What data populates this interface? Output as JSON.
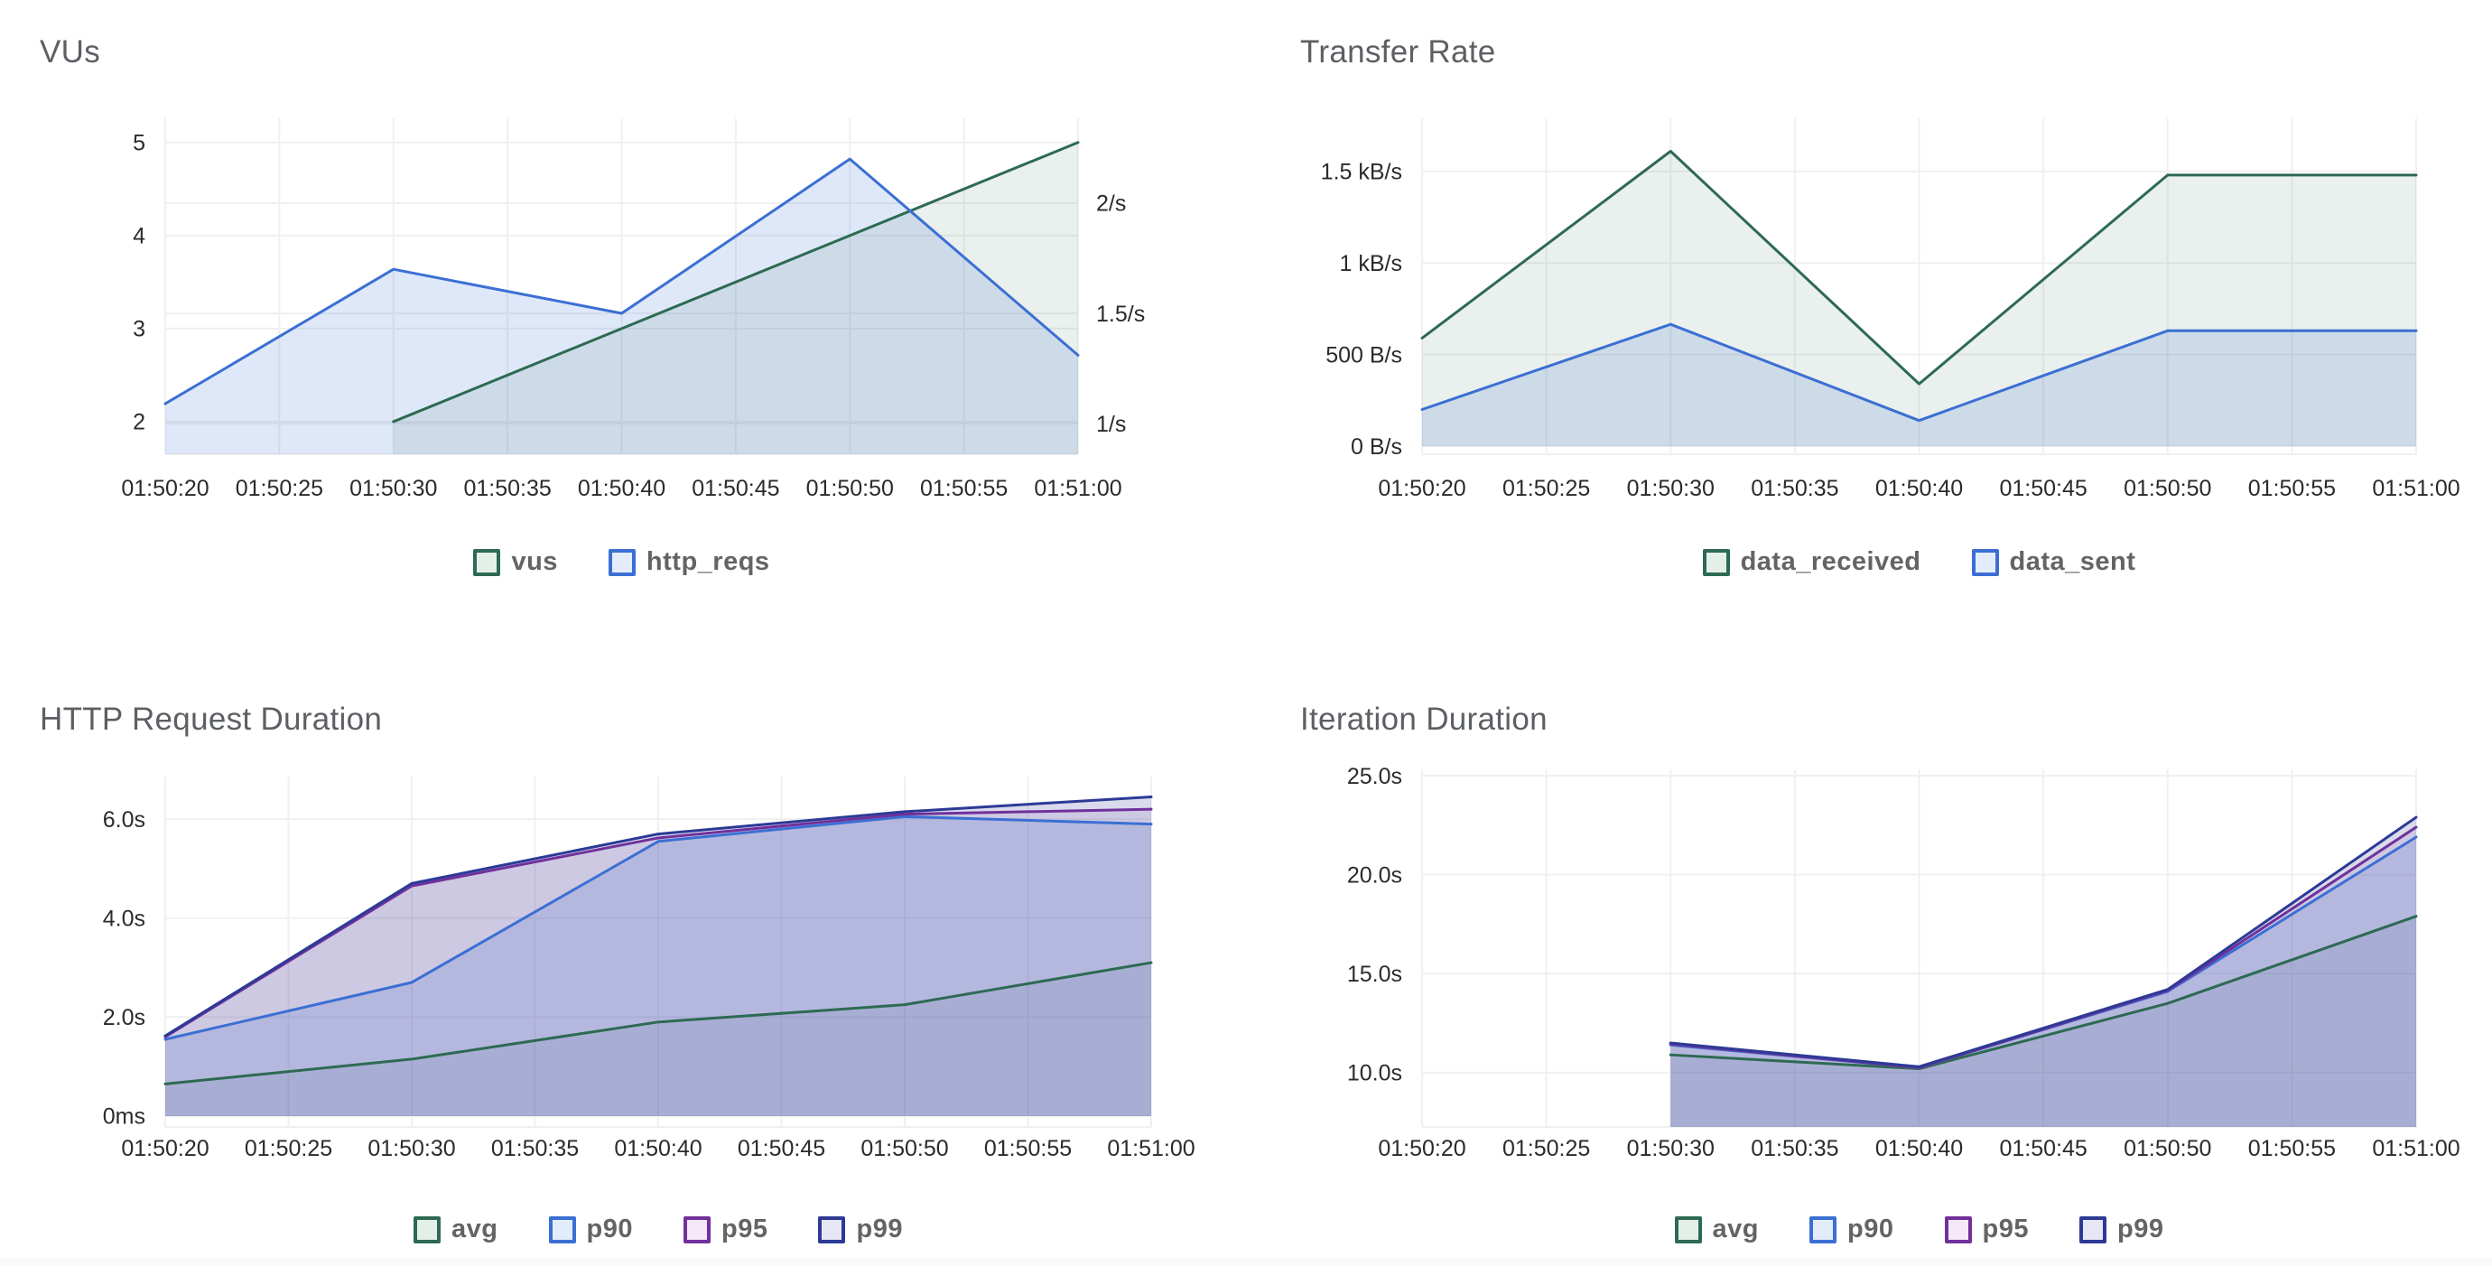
{
  "page_bg": "#ffffff",
  "palette": {
    "green": {
      "line": "#2d6a52",
      "fill": "rgba(45,106,82,0.10)",
      "swatch_fill": "#e4efe9"
    },
    "blue": {
      "line": "#3b6fd4",
      "fill": "rgba(59,111,212,0.16)",
      "swatch_fill": "#e3ecfa"
    },
    "purple": {
      "line": "#71309b",
      "fill": "rgba(113,48,155,0.10)",
      "swatch_fill": "#f5e8f8"
    },
    "indigo": {
      "line": "#2c3a96",
      "fill": "rgba(44,58,150,0.18)",
      "swatch_fill": "#e6e7f5"
    },
    "grid": "#f0f0f0",
    "tick_text": "#2b2b2b",
    "title_text": "#5c5f63",
    "legend_text": "#646464"
  },
  "chart_data": [
    {
      "type": "area",
      "id": "vus",
      "title": "VUs",
      "x_tick_labels": [
        "01:50:20",
        "01:50:25",
        "01:50:30",
        "01:50:35",
        "01:50:40",
        "01:50:45",
        "01:50:50",
        "01:50:55",
        "01:51:00"
      ],
      "grid": true,
      "legend_position": "bottom",
      "axes": {
        "left": {
          "tick_labels": [
            "5",
            "4",
            "3",
            "2"
          ],
          "tick_values": [
            5,
            4,
            3,
            2
          ],
          "top_value": 5.26,
          "bottom_value": 1.65
        },
        "right": {
          "tick_labels": [
            "2/s",
            "1.5/s",
            "1/s"
          ],
          "tick_values": [
            2,
            1.5,
            1
          ],
          "top_value": 2.385,
          "bottom_value": 0.861
        }
      },
      "series": [
        {
          "name": "vus",
          "color": "green",
          "axis": "left",
          "x_idx": [
            2,
            4,
            6,
            8
          ],
          "values": [
            2,
            3,
            4,
            5
          ]
        },
        {
          "name": "http_reqs",
          "color": "blue",
          "axis": "right",
          "x_idx": [
            0,
            2,
            4,
            6,
            8
          ],
          "values": [
            1.09,
            1.7,
            1.5,
            2.2,
            1.31
          ]
        }
      ]
    },
    {
      "type": "area",
      "id": "transfer",
      "title": "Transfer Rate",
      "x_tick_labels": [
        "01:50:20",
        "01:50:25",
        "01:50:30",
        "01:50:35",
        "01:50:40",
        "01:50:45",
        "01:50:50",
        "01:50:55",
        "01:51:00"
      ],
      "grid": true,
      "legend_position": "bottom",
      "axes": {
        "left": {
          "tick_labels": [
            "1.5 kB/s",
            "1 kB/s",
            "500 B/s",
            "0 B/s"
          ],
          "tick_values": [
            1500,
            1000,
            500,
            0
          ],
          "top_value": 1790,
          "bottom_value": -44,
          "baseline_value": 0
        }
      },
      "series": [
        {
          "name": "data_received",
          "color": "green",
          "axis": "left",
          "x_idx": [
            0,
            2,
            4,
            6,
            8
          ],
          "values": [
            590,
            1610,
            340,
            1480,
            1480
          ]
        },
        {
          "name": "data_sent",
          "color": "blue",
          "axis": "left",
          "x_idx": [
            0,
            2,
            4,
            6,
            8
          ],
          "values": [
            200,
            665,
            140,
            630,
            630
          ]
        }
      ]
    },
    {
      "type": "area",
      "id": "httpdur",
      "title": "HTTP Request Duration",
      "x_tick_labels": [
        "01:50:20",
        "01:50:25",
        "01:50:30",
        "01:50:35",
        "01:50:40",
        "01:50:45",
        "01:50:50",
        "01:50:55",
        "01:51:00"
      ],
      "grid": true,
      "legend_position": "bottom",
      "axes": {
        "left": {
          "tick_labels": [
            "6.0s",
            "4.0s",
            "2.0s",
            "0ms"
          ],
          "tick_values": [
            6,
            4,
            2,
            0
          ],
          "top_value": 6.86,
          "bottom_value": -0.22,
          "baseline_value": 0
        }
      },
      "series": [
        {
          "name": "avg",
          "color": "green",
          "axis": "left",
          "x_idx": [
            0,
            2,
            4,
            6,
            8
          ],
          "values": [
            0.65,
            1.15,
            1.9,
            2.25,
            3.1
          ]
        },
        {
          "name": "p90",
          "color": "blue",
          "axis": "left",
          "x_idx": [
            0,
            2,
            4,
            6,
            8
          ],
          "values": [
            1.55,
            2.7,
            5.55,
            6.05,
            5.9
          ]
        },
        {
          "name": "p95",
          "color": "purple",
          "axis": "left",
          "x_idx": [
            0,
            2,
            4,
            6,
            8
          ],
          "values": [
            1.6,
            4.65,
            5.62,
            6.1,
            6.2
          ]
        },
        {
          "name": "p99",
          "color": "indigo",
          "axis": "left",
          "x_idx": [
            0,
            2,
            4,
            6,
            8
          ],
          "values": [
            1.62,
            4.7,
            5.7,
            6.15,
            6.45
          ]
        }
      ]
    },
    {
      "type": "area",
      "id": "iterdur",
      "title": "Iteration Duration",
      "x_tick_labels": [
        "01:50:20",
        "01:50:25",
        "01:50:30",
        "01:50:35",
        "01:50:40",
        "01:50:45",
        "01:50:50",
        "01:50:55",
        "01:51:00"
      ],
      "grid": true,
      "legend_position": "bottom",
      "axes": {
        "left": {
          "tick_labels": [
            "25.0s",
            "20.0s",
            "15.0s",
            "10.0s"
          ],
          "tick_values": [
            25,
            20,
            15,
            10
          ],
          "top_value": 25.32,
          "bottom_value": 7.26
        }
      },
      "series": [
        {
          "name": "avg",
          "color": "green",
          "axis": "left",
          "x_idx": [
            2,
            4,
            6,
            8
          ],
          "values": [
            10.9,
            10.2,
            13.5,
            17.9
          ]
        },
        {
          "name": "p90",
          "color": "blue",
          "axis": "left",
          "x_idx": [
            2,
            4,
            6,
            8
          ],
          "values": [
            11.4,
            10.25,
            14.1,
            21.9
          ]
        },
        {
          "name": "p95",
          "color": "purple",
          "axis": "left",
          "x_idx": [
            2,
            4,
            6,
            8
          ],
          "values": [
            11.45,
            10.25,
            14.15,
            22.4
          ]
        },
        {
          "name": "p99",
          "color": "indigo",
          "axis": "left",
          "x_idx": [
            2,
            4,
            6,
            8
          ],
          "values": [
            11.5,
            10.3,
            14.2,
            22.9
          ]
        }
      ]
    }
  ]
}
